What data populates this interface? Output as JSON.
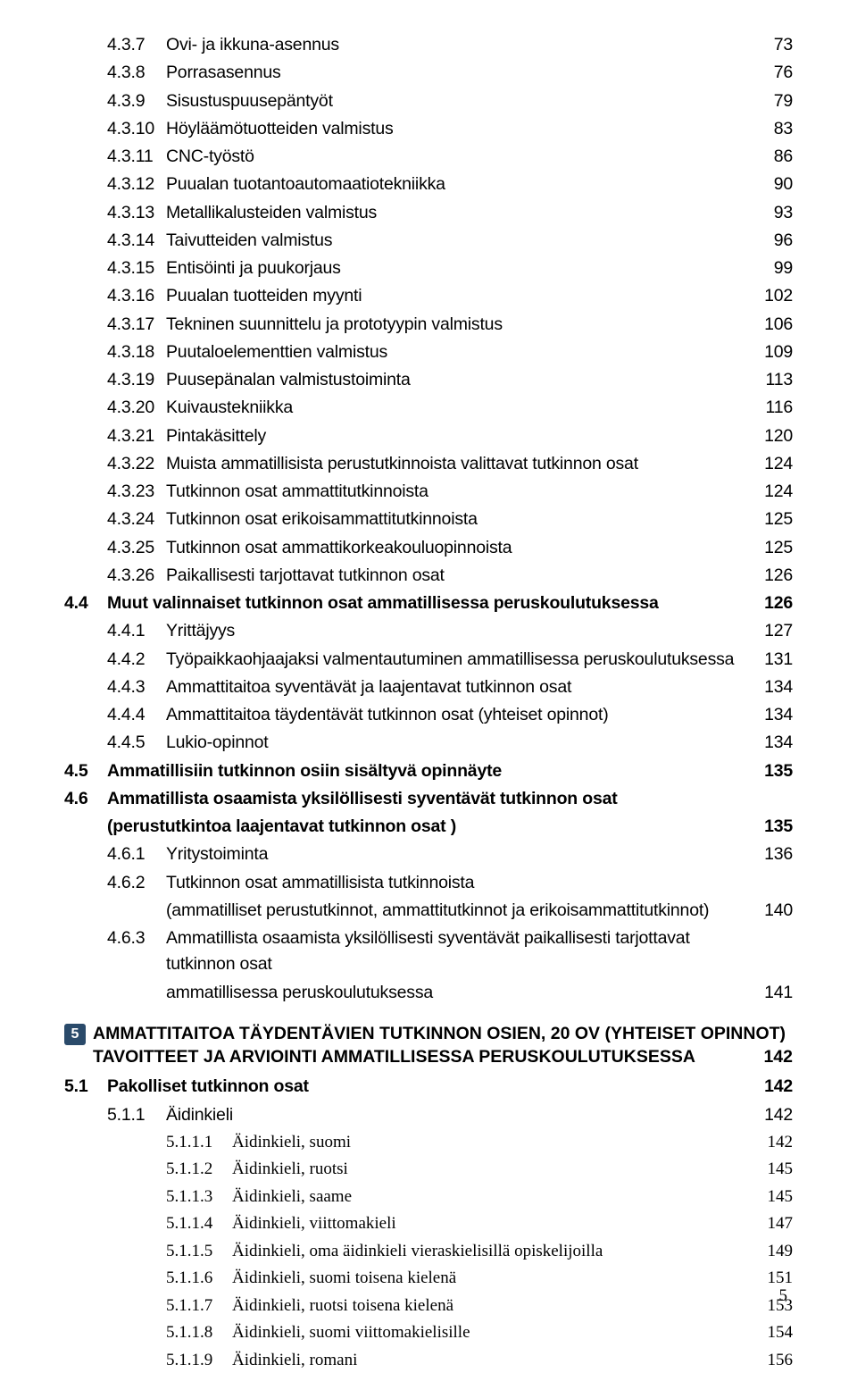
{
  "section4_subs": [
    {
      "num": "4.3.7",
      "title": "Ovi- ja ikkuna-asennus",
      "page": "73"
    },
    {
      "num": "4.3.8",
      "title": "Porrasasennus",
      "page": "76"
    },
    {
      "num": "4.3.9",
      "title": "Sisustuspuusepäntyöt",
      "page": "79"
    },
    {
      "num": "4.3.10",
      "title": "Höyläämötuotteiden valmistus",
      "page": "83"
    },
    {
      "num": "4.3.11",
      "title": "CNC-työstö",
      "page": "86"
    },
    {
      "num": "4.3.12",
      "title": "Puualan tuotantoautomaatiotekniikka",
      "page": "90"
    },
    {
      "num": "4.3.13",
      "title": "Metallikalusteiden valmistus",
      "page": "93"
    },
    {
      "num": "4.3.14",
      "title": "Taivutteiden valmistus",
      "page": "96"
    },
    {
      "num": "4.3.15",
      "title": "Entisöinti ja puukorjaus",
      "page": "99"
    },
    {
      "num": "4.3.16",
      "title": "Puualan tuotteiden myynti",
      "page": "102"
    },
    {
      "num": "4.3.17",
      "title": "Tekninen suunnittelu ja prototyypin valmistus",
      "page": "106"
    },
    {
      "num": "4.3.18",
      "title": "Puutaloelementtien valmistus",
      "page": "109"
    },
    {
      "num": "4.3.19",
      "title": "Puusepänalan valmistustoiminta",
      "page": "113"
    },
    {
      "num": "4.3.20",
      "title": "Kuivaustekniikka",
      "page": "116"
    },
    {
      "num": "4.3.21",
      "title": "Pintakäsittely",
      "page": "120"
    },
    {
      "num": "4.3.22",
      "title": "Muista ammatillisista perustutkinnoista valittavat tutkinnon osat",
      "page": "124"
    },
    {
      "num": "4.3.23",
      "title": "Tutkinnon osat ammattitutkinnoista",
      "page": "124"
    },
    {
      "num": "4.3.24",
      "title": "Tutkinnon osat erikoisammattitutkinnoista",
      "page": "125"
    },
    {
      "num": "4.3.25",
      "title": "Tutkinnon osat ammattikorkeakouluopinnoista",
      "page": "125"
    },
    {
      "num": "4.3.26",
      "title": "Paikallisesti tarjottavat tutkinnon osat",
      "page": "126"
    }
  ],
  "section4_4": {
    "num": "4.4",
    "title": "Muut valinnaiset tutkinnon osat ammatillisessa peruskoulutuksessa",
    "page": "126",
    "subs": [
      {
        "num": "4.4.1",
        "title": "Yrittäjyys",
        "page": "127"
      },
      {
        "num": "4.4.2",
        "title": "Työpaikkaohjaajaksi valmentautuminen ammatillisessa peruskoulutuksessa",
        "page": "131"
      },
      {
        "num": "4.4.3",
        "title": "Ammattitaitoa syventävät ja laajentavat tutkinnon osat",
        "page": "134"
      },
      {
        "num": "4.4.4",
        "title": "Ammattitaitoa täydentävät tutkinnon osat (yhteiset opinnot)",
        "page": "134"
      },
      {
        "num": "4.4.5",
        "title": "Lukio-opinnot",
        "page": "134"
      }
    ]
  },
  "section4_5": {
    "num": "4.5",
    "title": "Ammatillisiin tutkinnon osiin sisältyvä opinnäyte",
    "page": "135"
  },
  "section4_6": {
    "num": "4.6",
    "title_line1": "Ammatillista osaamista yksilöllisesti syventävät tutkinnon osat",
    "title_line2": "(perustutkintoa laajentavat tutkinnon osat )",
    "page": "135",
    "subs": [
      {
        "num": "4.6.1",
        "title": "Yritystoiminta",
        "page": "136"
      },
      {
        "num": "4.6.2",
        "title_line1": "Tutkinnon osat ammatillisista tutkinnoista",
        "title_line2": "(ammatilliset perustutkinnot, ammattitutkinnot ja erikoisammattitutkinnot)",
        "page": "140"
      },
      {
        "num": "4.6.3",
        "title_line1": "Ammatillista osaamista yksilöllisesti syventävät paikallisesti tarjottavat tutkinnon osat",
        "title_line2": "ammatillisessa peruskoulutuksessa",
        "page": "141"
      }
    ]
  },
  "section5": {
    "marker": "5",
    "title_line1": "AMMATTITAITOA TÄYDENTÄVIEN TUTKINNON OSIEN, 20 OV (YHTEISET OPINNOT)",
    "title_line2": "TAVOITTEET JA ARVIOINTI AMMATILLISESSA PERUSKOULUTUKSESSA",
    "page": "142"
  },
  "section5_1": {
    "num": "5.1",
    "title": "Pakolliset tutkinnon osat",
    "page": "142"
  },
  "section5_1_1": {
    "num": "5.1.1",
    "title": "Äidinkieli",
    "page": "142"
  },
  "section5_1_1_subs": [
    {
      "num": "5.1.1.1",
      "title": "Äidinkieli, suomi",
      "page": "142"
    },
    {
      "num": "5.1.1.2",
      "title": "Äidinkieli, ruotsi",
      "page": "145"
    },
    {
      "num": "5.1.1.3",
      "title": "Äidinkieli, saame",
      "page": "145"
    },
    {
      "num": "5.1.1.4",
      "title": "Äidinkieli, viittomakieli",
      "page": "147"
    },
    {
      "num": "5.1.1.5",
      "title": "Äidinkieli, oma äidinkieli vieraskielisillä opiskelijoilla",
      "page": "149"
    },
    {
      "num": "5.1.1.6",
      "title": "Äidinkieli, suomi toisena kielenä",
      "page": "151"
    },
    {
      "num": "5.1.1.7",
      "title": "Äidinkieli, ruotsi toisena kielenä",
      "page": "153"
    },
    {
      "num": "5.1.1.8",
      "title": "Äidinkieli, suomi viittomakielisille",
      "page": "154"
    },
    {
      "num": "5.1.1.9",
      "title": "Äidinkieli, romani",
      "page": "156"
    }
  ],
  "page_number": "5"
}
